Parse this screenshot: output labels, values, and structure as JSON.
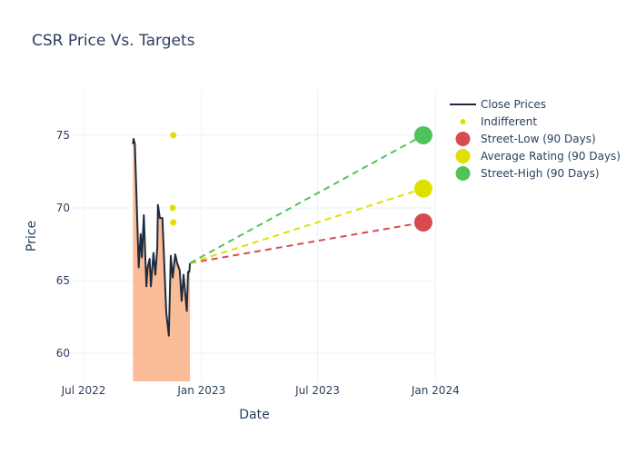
{
  "chart_data": {
    "type": "line",
    "title": "CSR Price Vs. Targets",
    "xlabel": "Date",
    "ylabel": "Price",
    "xlim": [
      "2022-06-14",
      "2024-01-02"
    ],
    "ylim": [
      58.06,
      78.06
    ],
    "grid": true,
    "legend_position": "top-right",
    "x_ticks": [
      {
        "date": "2022-07-01",
        "label": "Jul 2022"
      },
      {
        "date": "2023-01-01",
        "label": "Jan 2023"
      },
      {
        "date": "2023-07-01",
        "label": "Jul 2023"
      },
      {
        "date": "2024-01-01",
        "label": "Jan 2024"
      }
    ],
    "y_ticks": [
      60,
      65,
      70,
      75
    ],
    "series": [
      {
        "name": "Close Prices",
        "kind": "line-area",
        "color": "#1f2a3c",
        "fill_color": "#fbbd98",
        "points": [
          [
            "2022-09-16",
            74.4
          ],
          [
            "2022-09-17",
            74.75
          ],
          [
            "2022-09-19",
            74.4
          ],
          [
            "2022-09-25",
            65.9
          ],
          [
            "2022-09-28",
            68.2
          ],
          [
            "2022-09-30",
            66.6
          ],
          [
            "2022-10-03",
            69.5
          ],
          [
            "2022-10-07",
            64.6
          ],
          [
            "2022-10-09",
            65.9
          ],
          [
            "2022-10-12",
            66.5
          ],
          [
            "2022-10-14",
            64.6
          ],
          [
            "2022-10-18",
            66.9
          ],
          [
            "2022-10-21",
            65.4
          ],
          [
            "2022-10-24",
            67.3
          ],
          [
            "2022-10-25",
            70.2
          ],
          [
            "2022-10-28",
            69.3
          ],
          [
            "2022-11-01",
            69.3
          ],
          [
            "2022-11-07",
            62.8
          ],
          [
            "2022-11-11",
            61.2
          ],
          [
            "2022-11-14",
            66.7
          ],
          [
            "2022-11-17",
            65.2
          ],
          [
            "2022-11-21",
            66.8
          ],
          [
            "2022-11-24",
            66.2
          ],
          [
            "2022-11-28",
            65.7
          ],
          [
            "2022-12-01",
            63.6
          ],
          [
            "2022-12-04",
            65.4
          ],
          [
            "2022-12-09",
            62.9
          ],
          [
            "2022-12-11",
            65.6
          ],
          [
            "2022-12-13",
            65.6
          ],
          [
            "2022-12-14",
            66.2
          ]
        ]
      },
      {
        "name": "Indifferent",
        "kind": "markers",
        "color": "#e0e000",
        "points": [
          [
            "2022-11-18",
            75
          ],
          [
            "2022-11-17",
            70
          ],
          [
            "2022-11-18",
            69
          ]
        ]
      },
      {
        "name": "Street-Low (90 Days)",
        "kind": "target",
        "color": "#d64b50",
        "start": [
          "2022-12-14",
          66.2
        ],
        "end": [
          "2023-12-13",
          69
        ]
      },
      {
        "name": "Average Rating (90 Days)",
        "kind": "target",
        "color": "#e0e000",
        "start": [
          "2022-12-14",
          66.2
        ],
        "end": [
          "2023-12-13",
          71.33
        ]
      },
      {
        "name": "Street-High (90 Days)",
        "kind": "target",
        "color": "#4fc35a",
        "start": [
          "2022-12-14",
          66.2
        ],
        "end": [
          "2023-12-13",
          75
        ]
      }
    ]
  }
}
